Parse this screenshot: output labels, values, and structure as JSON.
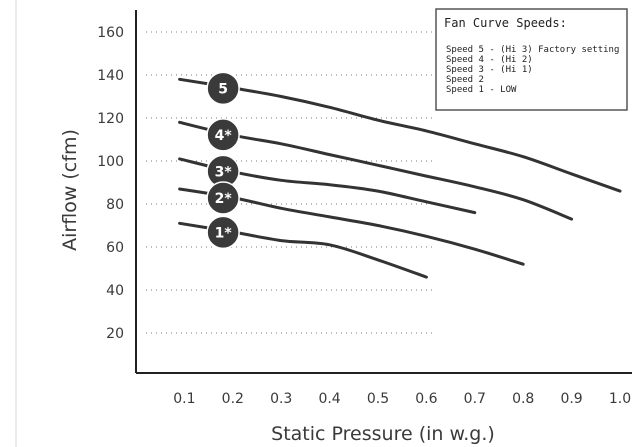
{
  "chart_data": {
    "type": "line",
    "xlabel": "Static Pressure (in w.g.)",
    "ylabel": "Airflow (cfm)",
    "xlim": [
      0,
      1.0
    ],
    "ylim": [
      0,
      160
    ],
    "x_ticks": [
      "0.1",
      "0.2",
      "0.3",
      "0.4",
      "0.5",
      "0.6",
      "0.7",
      "0.8",
      "0.9",
      "1.0"
    ],
    "x_tick_values": [
      0.1,
      0.2,
      0.3,
      0.4,
      0.5,
      0.6,
      0.7,
      0.8,
      0.9,
      1.0
    ],
    "y_ticks": [
      "20",
      "40",
      "60",
      "80",
      "100",
      "120",
      "140",
      "160"
    ],
    "y_tick_values": [
      20,
      40,
      60,
      80,
      100,
      120,
      140,
      160
    ],
    "grid": "horizontal dotted",
    "line_color": "#333333",
    "legend": {
      "title": "Fan Curve Speeds:",
      "items": [
        "Speed 5 - (Hi 3) Factory setting",
        "Speed 4 - (Hi 2)",
        "Speed 3 - (Hi 1)",
        "Speed 2",
        "Speed 1 - LOW"
      ],
      "placement": "top-right"
    },
    "series": [
      {
        "badge": "5",
        "x": [
          0.09,
          0.2,
          0.3,
          0.4,
          0.5,
          0.6,
          0.7,
          0.8,
          0.9,
          1.0
        ],
        "y": [
          138,
          134,
          130,
          125,
          119,
          114,
          108,
          102,
          94,
          86
        ]
      },
      {
        "badge": "4*",
        "x": [
          0.09,
          0.2,
          0.3,
          0.4,
          0.5,
          0.6,
          0.7,
          0.8,
          0.9
        ],
        "y": [
          118,
          112,
          108,
          103,
          98,
          93,
          88,
          82,
          73
        ]
      },
      {
        "badge": "3*",
        "x": [
          0.09,
          0.2,
          0.3,
          0.4,
          0.5,
          0.6,
          0.7
        ],
        "y": [
          101,
          95,
          91,
          89,
          86,
          81,
          76
        ]
      },
      {
        "badge": "2*",
        "x": [
          0.09,
          0.2,
          0.3,
          0.4,
          0.5,
          0.6,
          0.7,
          0.8
        ],
        "y": [
          87,
          83,
          78,
          74,
          70,
          65,
          59,
          52
        ]
      },
      {
        "badge": "1*",
        "x": [
          0.09,
          0.2,
          0.3,
          0.4,
          0.5,
          0.6
        ],
        "y": [
          71,
          67,
          63,
          61,
          54,
          46
        ]
      }
    ]
  }
}
